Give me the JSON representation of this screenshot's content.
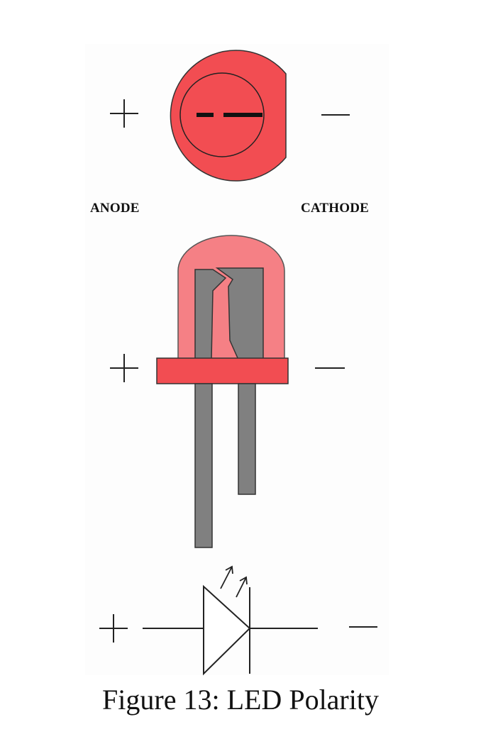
{
  "labels": {
    "anode": "ANODE",
    "cathode": "CATHODE",
    "plus": "+",
    "minus": "—"
  },
  "caption": "Figure 13: LED Polarity",
  "colors": {
    "led_red": "#f24d52",
    "led_dome": "#f58085",
    "lead_gray": "#808080",
    "outline": "#222222"
  }
}
